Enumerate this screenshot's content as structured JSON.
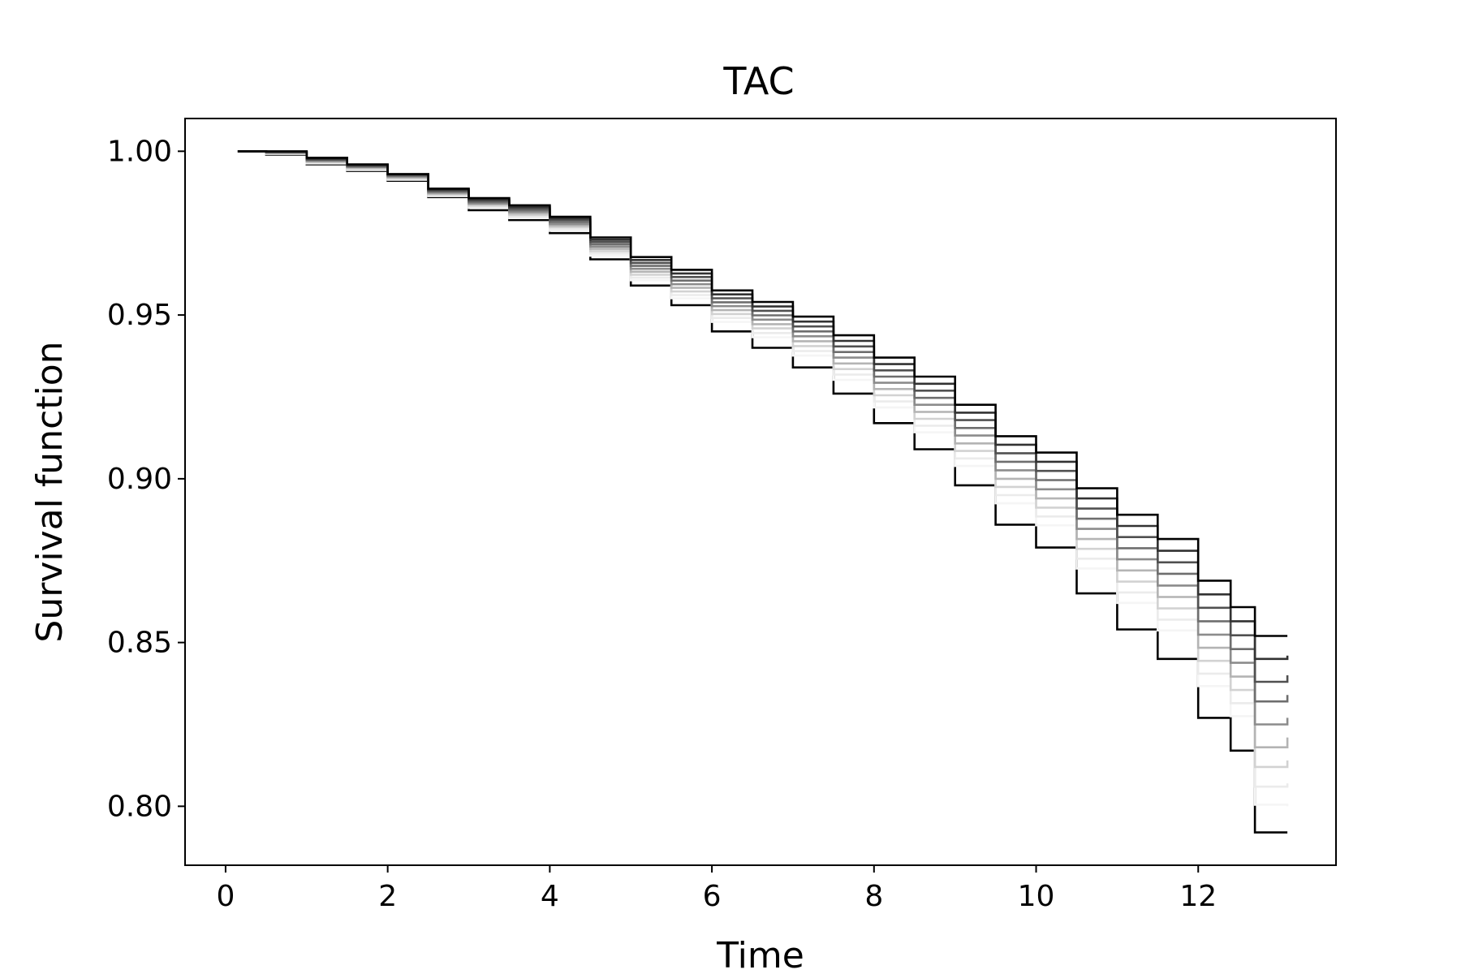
{
  "chart_data": {
    "type": "line",
    "title": "TAC",
    "xlabel": "Time",
    "ylabel": "Survival function",
    "xlim": [
      -0.5,
      13.7
    ],
    "ylim": [
      0.782,
      1.01
    ],
    "xticks": [
      0,
      2,
      4,
      6,
      8,
      10,
      12
    ],
    "xtick_labels": [
      "0",
      "2",
      "4",
      "6",
      "8",
      "10",
      "12"
    ],
    "yticks": [
      0.8,
      0.85,
      0.9,
      0.95,
      1.0
    ],
    "ytick_labels": [
      "0.80",
      "0.85",
      "0.90",
      "0.95",
      "1.00"
    ],
    "grid": false,
    "legend": "none",
    "step": true,
    "series": [
      {
        "color": "#000000",
        "points": [
          [
            0.15,
            1.0
          ],
          [
            0.5,
            0.999
          ],
          [
            1.0,
            0.996
          ],
          [
            1.5,
            0.994
          ],
          [
            2.0,
            0.991
          ],
          [
            2.5,
            0.986
          ],
          [
            3.0,
            0.982
          ],
          [
            3.5,
            0.979
          ],
          [
            4.0,
            0.975
          ],
          [
            4.5,
            0.967
          ],
          [
            5.0,
            0.959
          ],
          [
            5.5,
            0.953
          ],
          [
            6.0,
            0.945
          ],
          [
            6.5,
            0.94
          ],
          [
            7.0,
            0.934
          ],
          [
            7.5,
            0.926
          ],
          [
            8.0,
            0.917
          ],
          [
            8.5,
            0.909
          ],
          [
            9.0,
            0.898
          ],
          [
            9.5,
            0.886
          ],
          [
            10.0,
            0.879
          ],
          [
            10.5,
            0.865
          ],
          [
            11.0,
            0.854
          ],
          [
            11.5,
            0.845
          ],
          [
            12.0,
            0.827
          ],
          [
            12.4,
            0.817
          ],
          [
            12.7,
            0.792
          ],
          [
            13.1,
            0.792
          ]
        ]
      },
      {
        "color": "#f5f5f5",
        "points": [
          [
            0.15,
            1.0
          ],
          [
            0.5,
            0.9992
          ],
          [
            1.0,
            0.9963
          ],
          [
            1.5,
            0.9943
          ],
          [
            2.0,
            0.9913
          ],
          [
            2.5,
            0.9863
          ],
          [
            3.0,
            0.9827
          ],
          [
            3.5,
            0.9796
          ],
          [
            4.0,
            0.9757
          ],
          [
            4.5,
            0.9681
          ],
          [
            5.0,
            0.9606
          ],
          [
            5.5,
            0.9551
          ],
          [
            6.0,
            0.9479
          ],
          [
            6.5,
            0.9432
          ],
          [
            7.0,
            0.9376
          ],
          [
            7.5,
            0.9302
          ],
          [
            8.0,
            0.9218
          ],
          [
            8.5,
            0.9142
          ],
          [
            9.0,
            0.9039
          ],
          [
            9.5,
            0.8925
          ],
          [
            10.0,
            0.8858
          ],
          [
            10.5,
            0.8726
          ],
          [
            11.0,
            0.8621
          ],
          [
            11.5,
            0.8537
          ],
          [
            12.0,
            0.8367
          ],
          [
            12.4,
            0.8275
          ],
          [
            12.7,
            0.8005
          ],
          [
            13.1,
            0.8
          ]
        ]
      },
      {
        "color": "#ebebeb",
        "points": [
          [
            0.15,
            1.0
          ],
          [
            0.5,
            0.9993
          ],
          [
            1.0,
            0.9965
          ],
          [
            1.5,
            0.9945
          ],
          [
            2.0,
            0.9915
          ],
          [
            2.5,
            0.9865
          ],
          [
            3.0,
            0.983
          ],
          [
            3.5,
            0.98
          ],
          [
            4.0,
            0.9762
          ],
          [
            4.5,
            0.9688
          ],
          [
            5.0,
            0.9614
          ],
          [
            5.5,
            0.9561
          ],
          [
            6.0,
            0.9491
          ],
          [
            6.5,
            0.9445
          ],
          [
            7.0,
            0.939
          ],
          [
            7.5,
            0.9318
          ],
          [
            8.0,
            0.9236
          ],
          [
            8.5,
            0.9162
          ],
          [
            9.0,
            0.9062
          ],
          [
            9.5,
            0.895
          ],
          [
            10.0,
            0.8885
          ],
          [
            10.5,
            0.8756
          ],
          [
            11.0,
            0.8653
          ],
          [
            11.5,
            0.857
          ],
          [
            12.0,
            0.8405
          ],
          [
            12.4,
            0.8315
          ],
          [
            12.7,
            0.806
          ],
          [
            13.1,
            0.807
          ]
        ]
      },
      {
        "color": "#d2d2d2",
        "points": [
          [
            0.15,
            1.0
          ],
          [
            0.5,
            0.9994
          ],
          [
            1.0,
            0.9967
          ],
          [
            1.5,
            0.9947
          ],
          [
            2.0,
            0.9918
          ],
          [
            2.5,
            0.9868
          ],
          [
            3.0,
            0.9834
          ],
          [
            3.5,
            0.9805
          ],
          [
            4.0,
            0.9768
          ],
          [
            4.5,
            0.9695
          ],
          [
            5.0,
            0.9623
          ],
          [
            5.5,
            0.9572
          ],
          [
            6.0,
            0.9503
          ],
          [
            6.5,
            0.9459
          ],
          [
            7.0,
            0.9405
          ],
          [
            7.5,
            0.9335
          ],
          [
            8.0,
            0.9255
          ],
          [
            8.5,
            0.9183
          ],
          [
            9.0,
            0.9085
          ],
          [
            9.5,
            0.8975
          ],
          [
            10.0,
            0.8912
          ],
          [
            10.5,
            0.8786
          ],
          [
            11.0,
            0.8686
          ],
          [
            11.5,
            0.8604
          ],
          [
            12.0,
            0.8444
          ],
          [
            12.4,
            0.8355
          ],
          [
            12.7,
            0.812
          ],
          [
            13.1,
            0.814
          ]
        ]
      },
      {
        "color": "#b4b4b4",
        "points": [
          [
            0.15,
            1.0
          ],
          [
            0.5,
            0.9995
          ],
          [
            1.0,
            0.9969
          ],
          [
            1.5,
            0.995
          ],
          [
            2.0,
            0.992
          ],
          [
            2.5,
            0.9871
          ],
          [
            3.0,
            0.9838
          ],
          [
            3.5,
            0.981
          ],
          [
            4.0,
            0.9773
          ],
          [
            4.5,
            0.9702
          ],
          [
            5.0,
            0.9632
          ],
          [
            5.5,
            0.9583
          ],
          [
            6.0,
            0.9515
          ],
          [
            6.5,
            0.9472
          ],
          [
            7.0,
            0.942
          ],
          [
            7.5,
            0.9352
          ],
          [
            8.0,
            0.9274
          ],
          [
            8.5,
            0.9204
          ],
          [
            9.0,
            0.9108
          ],
          [
            9.5,
            0.9
          ],
          [
            10.0,
            0.894
          ],
          [
            10.5,
            0.8816
          ],
          [
            11.0,
            0.872
          ],
          [
            11.5,
            0.8639
          ],
          [
            12.0,
            0.8484
          ],
          [
            12.4,
            0.8396
          ],
          [
            12.7,
            0.818
          ],
          [
            13.1,
            0.821
          ]
        ]
      },
      {
        "color": "#8c8c8c",
        "points": [
          [
            0.15,
            1.0
          ],
          [
            0.5,
            0.9996
          ],
          [
            1.0,
            0.9971
          ],
          [
            1.5,
            0.9952
          ],
          [
            2.0,
            0.9923
          ],
          [
            2.5,
            0.9874
          ],
          [
            3.0,
            0.9841
          ],
          [
            3.5,
            0.9815
          ],
          [
            4.0,
            0.9778
          ],
          [
            4.5,
            0.9709
          ],
          [
            5.0,
            0.9641
          ],
          [
            5.5,
            0.9594
          ],
          [
            6.0,
            0.9527
          ],
          [
            6.5,
            0.9486
          ],
          [
            7.0,
            0.9435
          ],
          [
            7.5,
            0.937
          ],
          [
            8.0,
            0.9293
          ],
          [
            8.5,
            0.9226
          ],
          [
            9.0,
            0.9132
          ],
          [
            9.5,
            0.9026
          ],
          [
            10.0,
            0.8968
          ],
          [
            10.5,
            0.8847
          ],
          [
            11.0,
            0.8754
          ],
          [
            11.5,
            0.8674
          ],
          [
            12.0,
            0.8524
          ],
          [
            12.4,
            0.8438
          ],
          [
            12.7,
            0.825
          ],
          [
            13.1,
            0.827
          ]
        ]
      },
      {
        "color": "#6e6e6e",
        "points": [
          [
            0.15,
            1.0
          ],
          [
            0.5,
            0.9997
          ],
          [
            1.0,
            0.9973
          ],
          [
            1.5,
            0.9954
          ],
          [
            2.0,
            0.9925
          ],
          [
            2.5,
            0.9877
          ],
          [
            3.0,
            0.9845
          ],
          [
            3.5,
            0.982
          ],
          [
            4.0,
            0.9784
          ],
          [
            4.5,
            0.9716
          ],
          [
            5.0,
            0.965
          ],
          [
            5.5,
            0.9605
          ],
          [
            6.0,
            0.9539
          ],
          [
            6.5,
            0.9499
          ],
          [
            7.0,
            0.945
          ],
          [
            7.5,
            0.9387
          ],
          [
            8.0,
            0.9312
          ],
          [
            8.5,
            0.9247
          ],
          [
            9.0,
            0.9155
          ],
          [
            9.5,
            0.9052
          ],
          [
            10.0,
            0.8996
          ],
          [
            10.5,
            0.8878
          ],
          [
            11.0,
            0.8788
          ],
          [
            11.5,
            0.871
          ],
          [
            12.0,
            0.8565
          ],
          [
            12.4,
            0.848
          ],
          [
            12.7,
            0.832
          ],
          [
            13.1,
            0.834
          ]
        ]
      },
      {
        "color": "#505050",
        "points": [
          [
            0.15,
            1.0
          ],
          [
            0.5,
            0.9998
          ],
          [
            1.0,
            0.9975
          ],
          [
            1.5,
            0.9956
          ],
          [
            2.0,
            0.9928
          ],
          [
            2.5,
            0.988
          ],
          [
            3.0,
            0.9849
          ],
          [
            3.5,
            0.9825
          ],
          [
            4.0,
            0.979
          ],
          [
            4.5,
            0.9723
          ],
          [
            5.0,
            0.9659
          ],
          [
            5.5,
            0.9616
          ],
          [
            6.0,
            0.9551
          ],
          [
            6.5,
            0.9513
          ],
          [
            7.0,
            0.9465
          ],
          [
            7.5,
            0.9404
          ],
          [
            8.0,
            0.9331
          ],
          [
            8.5,
            0.9269
          ],
          [
            9.0,
            0.9179
          ],
          [
            9.5,
            0.9078
          ],
          [
            10.0,
            0.9024
          ],
          [
            10.5,
            0.8909
          ],
          [
            11.0,
            0.8822
          ],
          [
            11.5,
            0.8745
          ],
          [
            12.0,
            0.8606
          ],
          [
            12.4,
            0.8522
          ],
          [
            12.7,
            0.838
          ],
          [
            13.1,
            0.84
          ]
        ]
      },
      {
        "color": "#323232",
        "points": [
          [
            0.15,
            1.0
          ],
          [
            0.5,
            0.9999
          ],
          [
            1.0,
            0.9977
          ],
          [
            1.5,
            0.9958
          ],
          [
            2.0,
            0.993
          ],
          [
            2.5,
            0.9883
          ],
          [
            3.0,
            0.9853
          ],
          [
            3.5,
            0.983
          ],
          [
            4.0,
            0.9795
          ],
          [
            4.5,
            0.973
          ],
          [
            5.0,
            0.9668
          ],
          [
            5.5,
            0.9627
          ],
          [
            6.0,
            0.9563
          ],
          [
            6.5,
            0.9526
          ],
          [
            7.0,
            0.948
          ],
          [
            7.5,
            0.9421
          ],
          [
            8.0,
            0.935
          ],
          [
            8.5,
            0.929
          ],
          [
            9.0,
            0.9202
          ],
          [
            9.5,
            0.9104
          ],
          [
            10.0,
            0.9052
          ],
          [
            10.5,
            0.894
          ],
          [
            11.0,
            0.8856
          ],
          [
            11.5,
            0.878
          ],
          [
            12.0,
            0.8647
          ],
          [
            12.4,
            0.8565
          ],
          [
            12.7,
            0.845
          ],
          [
            13.1,
            0.846
          ]
        ]
      },
      {
        "color": "#000000",
        "points": [
          [
            0.15,
            1.0
          ],
          [
            0.5,
            1.0
          ],
          [
            1.0,
            0.998
          ],
          [
            1.5,
            0.996
          ],
          [
            2.0,
            0.993
          ],
          [
            2.5,
            0.9886
          ],
          [
            3.0,
            0.9857
          ],
          [
            3.5,
            0.9835
          ],
          [
            4.0,
            0.98
          ],
          [
            4.5,
            0.9737
          ],
          [
            5.0,
            0.9677
          ],
          [
            5.5,
            0.9638
          ],
          [
            6.0,
            0.9575
          ],
          [
            6.5,
            0.954
          ],
          [
            7.0,
            0.9495
          ],
          [
            7.5,
            0.9438
          ],
          [
            8.0,
            0.937
          ],
          [
            8.5,
            0.9312
          ],
          [
            9.0,
            0.9226
          ],
          [
            9.5,
            0.913
          ],
          [
            10.0,
            0.908
          ],
          [
            10.5,
            0.8971
          ],
          [
            11.0,
            0.889
          ],
          [
            11.5,
            0.8816
          ],
          [
            12.0,
            0.8689
          ],
          [
            12.4,
            0.8608
          ],
          [
            12.7,
            0.852
          ],
          [
            13.1,
            0.852
          ]
        ]
      }
    ]
  }
}
